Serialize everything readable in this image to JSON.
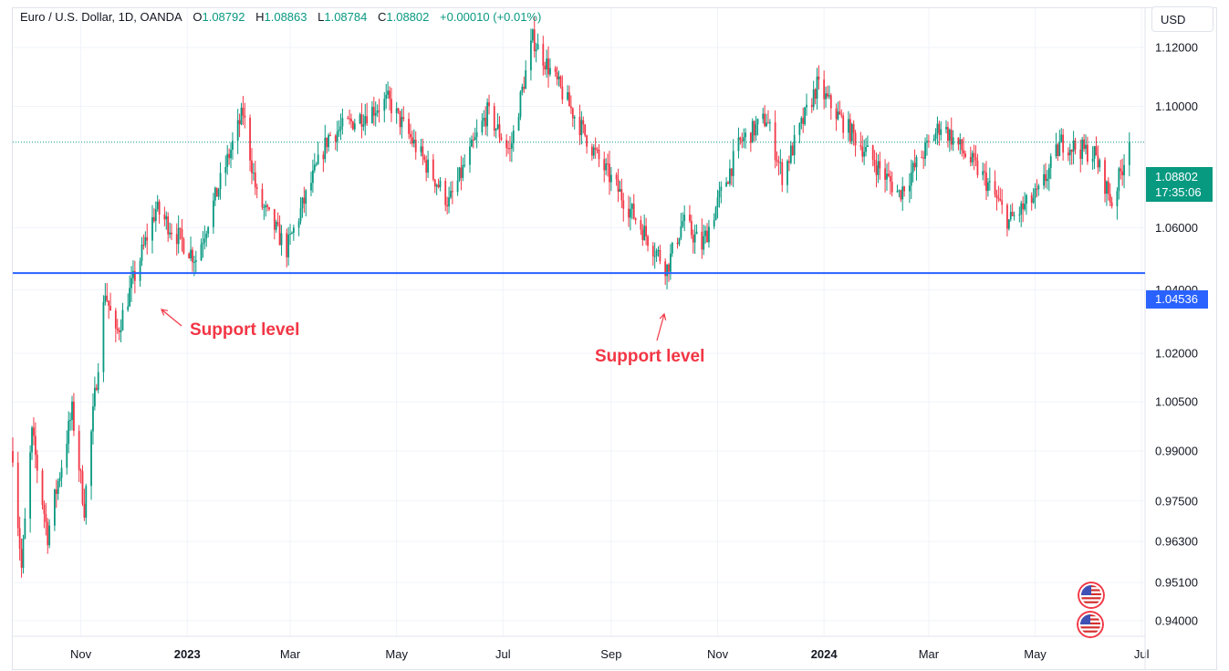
{
  "legend": {
    "symbol": "Euro / U.S. Dollar, 1D, OANDA",
    "open_label": "O",
    "open": "1.08792",
    "high_label": "H",
    "high": "1.08863",
    "low_label": "L",
    "low": "1.08784",
    "close_label": "C",
    "close": "1.08802",
    "change": "+0.00010 (+0.01%)"
  },
  "currency_button": "USD",
  "last_price": {
    "price": "1.08802",
    "countdown": "17:35:06",
    "value": 1.08802
  },
  "support_line": {
    "price": "1.04536",
    "value": 1.04536
  },
  "annotations": [
    "Support level",
    "Support level"
  ],
  "colors": {
    "up": "#089981",
    "down": "#f23645",
    "support_line": "#2962ff",
    "grid": "#f0f3fa",
    "annotation": "#f23645"
  },
  "events": [
    "us-flag-icon",
    "us-flag-icon"
  ],
  "chart_data": {
    "type": "candlestick",
    "title": "Euro / U.S. Dollar, 1D, OANDA",
    "y_scale": "log",
    "ylim": [
      0.9355,
      1.1335
    ],
    "y_ticks": [
      "1.12000",
      "1.10000",
      "1.06000",
      "1.04000",
      "1.02000",
      "1.00500",
      "0.99000",
      "0.97500",
      "0.96300",
      "0.95100",
      "0.94000"
    ],
    "x_ticks": [
      {
        "label": "Nov",
        "date": "2022-11-01"
      },
      {
        "label": "2023",
        "date": "2023-01-01",
        "bold": true
      },
      {
        "label": "Mar",
        "date": "2023-03-01"
      },
      {
        "label": "May",
        "date": "2023-05-01"
      },
      {
        "label": "Jul",
        "date": "2023-07-01"
      },
      {
        "label": "Sep",
        "date": "2023-09-01"
      },
      {
        "label": "Nov",
        "date": "2023-11-01"
      },
      {
        "label": "2024",
        "date": "2024-01-01",
        "bold": true
      },
      {
        "label": "Mar",
        "date": "2024-03-01"
      },
      {
        "label": "May",
        "date": "2024-05-01"
      },
      {
        "label": "Jul",
        "date": "2024-07-01"
      }
    ],
    "x_range": [
      "2022-09-23",
      "2024-07-03"
    ],
    "price_path": [
      [
        "2022-09-23",
        0.99
      ],
      [
        "2022-09-28",
        0.955
      ],
      [
        "2022-10-04",
        0.995
      ],
      [
        "2022-10-13",
        0.965
      ],
      [
        "2022-10-27",
        1.002
      ],
      [
        "2022-11-03",
        0.973
      ],
      [
        "2022-11-15",
        1.04
      ],
      [
        "2022-11-21",
        1.025
      ],
      [
        "2022-12-14",
        1.066
      ],
      [
        "2023-01-06",
        1.05
      ],
      [
        "2023-02-02",
        1.098
      ],
      [
        "2023-02-10",
        1.07
      ],
      [
        "2023-02-27",
        1.053
      ],
      [
        "2023-03-23",
        1.09
      ],
      [
        "2023-04-26",
        1.102
      ],
      [
        "2023-05-31",
        1.068
      ],
      [
        "2023-06-22",
        1.098
      ],
      [
        "2023-07-05",
        1.085
      ],
      [
        "2023-07-18",
        1.123
      ],
      [
        "2023-08-10",
        1.098
      ],
      [
        "2023-08-24",
        1.083
      ],
      [
        "2023-09-26",
        1.053
      ],
      [
        "2023-10-03",
        1.047
      ],
      [
        "2023-10-12",
        1.062
      ],
      [
        "2023-10-23",
        1.054
      ],
      [
        "2023-11-14",
        1.088
      ],
      [
        "2023-11-29",
        1.096
      ],
      [
        "2023-12-08",
        1.077
      ],
      [
        "2023-12-28",
        1.107
      ],
      [
        "2024-01-10",
        1.096
      ],
      [
        "2024-02-13",
        1.071
      ],
      [
        "2024-03-08",
        1.094
      ],
      [
        "2024-04-02",
        1.076
      ],
      [
        "2024-04-16",
        1.062
      ],
      [
        "2024-05-03",
        1.071
      ],
      [
        "2024-05-16",
        1.088
      ],
      [
        "2024-06-04",
        1.084
      ],
      [
        "2024-06-14",
        1.068
      ],
      [
        "2024-06-24",
        1.088
      ]
    ],
    "last": 1.08802,
    "support": 1.04536
  }
}
